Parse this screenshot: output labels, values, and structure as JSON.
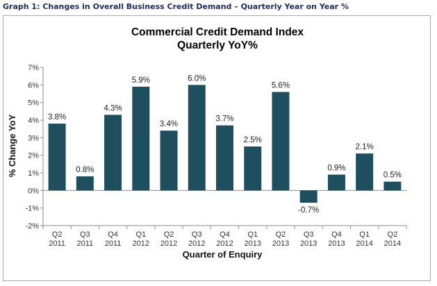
{
  "caption": "Graph 1: Changes in Overall Business Credit Demand – Quarterly Year on Year %",
  "chart_data": {
    "type": "bar",
    "title": "Commercial Credit Demand Index",
    "subtitle": "Quarterly YoY%",
    "xlabel": "Quarter of Enquiry",
    "ylabel": "% Change YoY",
    "ylim": [
      -2,
      7
    ],
    "yticks": [
      "-2%",
      "-1%",
      "0%",
      "1%",
      "2%",
      "3%",
      "4%",
      "5%",
      "6%",
      "7%"
    ],
    "categories": [
      [
        "Q2",
        "2011"
      ],
      [
        "Q3",
        "2011"
      ],
      [
        "Q4",
        "2011"
      ],
      [
        "Q1",
        "2012"
      ],
      [
        "Q2",
        "2012"
      ],
      [
        "Q3",
        "2012"
      ],
      [
        "Q4",
        "2012"
      ],
      [
        "Q1",
        "2013"
      ],
      [
        "Q2",
        "2013"
      ],
      [
        "Q3",
        "2013"
      ],
      [
        "Q4",
        "2013"
      ],
      [
        "Q1",
        "2014"
      ],
      [
        "Q2",
        "2014"
      ]
    ],
    "values": [
      3.8,
      0.8,
      4.3,
      5.9,
      3.4,
      6.0,
      3.7,
      2.5,
      5.6,
      -0.7,
      0.9,
      2.1,
      0.5
    ],
    "data_labels": [
      "3.8%",
      "0.8%",
      "4.3%",
      "5.9%",
      "3.4%",
      "6.0%",
      "3.7%",
      "2.5%",
      "5.6%",
      "-0.7%",
      "0.9%",
      "2.1%",
      "0.5%"
    ],
    "bar_color": "#1f4e5f",
    "grid": false,
    "legend": "none"
  }
}
